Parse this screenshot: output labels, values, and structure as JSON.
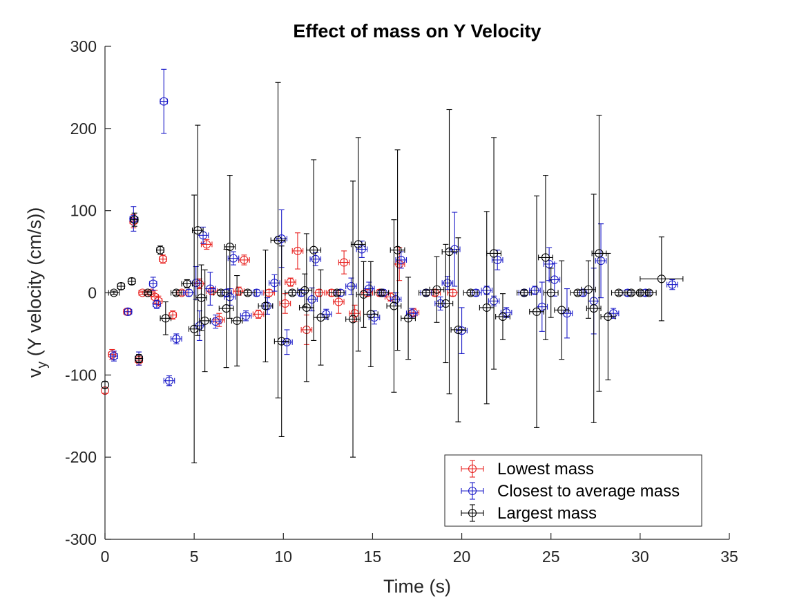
{
  "chart_data": {
    "type": "scatter",
    "title": "Effect of mass on  Y Velocity",
    "xlabel": "Time (s)",
    "ylabel_main": "v",
    "ylabel_sub": "y",
    "ylabel_rest": " (Y velocity (cm/s))",
    "xlim": [
      0,
      35
    ],
    "ylim": [
      -300,
      300
    ],
    "xticks": [
      0,
      5,
      10,
      15,
      20,
      25,
      30,
      35
    ],
    "yticks": [
      300,
      200,
      100,
      0,
      -100,
      -200,
      -300
    ],
    "grid": false,
    "legend_position": "bottom-right",
    "series": [
      {
        "name": "Lowest mass",
        "color": "#e8211f",
        "points": [
          [
            0.0,
            -119,
            0,
            3
          ],
          [
            0.4,
            -75,
            0.2,
            6
          ],
          [
            1.25,
            -23,
            0.2,
            4
          ],
          [
            1.6,
            87,
            0.2,
            8
          ],
          [
            1.9,
            -82,
            0.2,
            6
          ],
          [
            2.1,
            0,
            0.2,
            2
          ],
          [
            2.4,
            0,
            0.2,
            2
          ],
          [
            2.6,
            0,
            0.2,
            2
          ],
          [
            2.8,
            -5,
            0.2,
            8
          ],
          [
            3.0,
            -10,
            0.2,
            6
          ],
          [
            3.25,
            41,
            0.2,
            5
          ],
          [
            3.8,
            -27,
            0.2,
            5
          ],
          [
            4.3,
            0,
            0.3,
            3
          ],
          [
            5.3,
            11,
            0.3,
            6
          ],
          [
            5.7,
            59,
            0.3,
            6
          ],
          [
            6.0,
            2,
            0.3,
            4
          ],
          [
            6.4,
            -33,
            0.3,
            8
          ],
          [
            7.5,
            2,
            0.3,
            5
          ],
          [
            7.8,
            40,
            0.3,
            6
          ],
          [
            8.6,
            -26,
            0.3,
            5
          ],
          [
            9.2,
            0,
            0.3,
            4
          ],
          [
            10.1,
            -13,
            0.3,
            12
          ],
          [
            10.4,
            13,
            0.3,
            5
          ],
          [
            10.8,
            51,
            0.3,
            22
          ],
          [
            11.3,
            -45,
            0.3,
            18
          ],
          [
            12.0,
            0,
            0.3,
            4
          ],
          [
            12.7,
            0,
            0.3,
            4
          ],
          [
            13.1,
            -11,
            0.3,
            14
          ],
          [
            13.4,
            37,
            0.3,
            14
          ],
          [
            14.0,
            -25,
            0.3,
            10
          ],
          [
            14.7,
            0,
            0.3,
            4
          ],
          [
            15.4,
            0,
            0.3,
            4
          ],
          [
            16.0,
            -5,
            0.3,
            5
          ],
          [
            16.5,
            35,
            0.3,
            20
          ],
          [
            17.3,
            -24,
            0.3,
            5
          ],
          [
            18.5,
            0,
            0.3,
            4
          ],
          [
            19.5,
            0,
            0.3,
            4
          ]
        ]
      },
      {
        "name": "Closest to average mass",
        "color": "#1a1ac8",
        "points": [
          [
            0.5,
            -77,
            0.2,
            6
          ],
          [
            1.3,
            -23,
            0.2,
            4
          ],
          [
            1.6,
            90,
            0.2,
            15
          ],
          [
            1.9,
            -80,
            0.2,
            8
          ],
          [
            2.7,
            11,
            0.2,
            8
          ],
          [
            2.9,
            -14,
            0.2,
            5
          ],
          [
            3.3,
            233,
            0.2,
            39
          ],
          [
            3.6,
            -107,
            0.3,
            6
          ],
          [
            4.0,
            -56,
            0.3,
            6
          ],
          [
            4.7,
            0,
            0.3,
            4
          ],
          [
            5.1,
            12,
            0.3,
            20
          ],
          [
            5.3,
            -40,
            0.3,
            18
          ],
          [
            5.5,
            70,
            0.3,
            10
          ],
          [
            5.9,
            5,
            0.3,
            20
          ],
          [
            6.2,
            -35,
            0.3,
            8
          ],
          [
            6.8,
            0,
            0.3,
            4
          ],
          [
            7.0,
            -5,
            0.3,
            10
          ],
          [
            7.2,
            42,
            0.3,
            8
          ],
          [
            7.9,
            -28,
            0.3,
            6
          ],
          [
            8.5,
            0,
            0.3,
            4
          ],
          [
            9.1,
            -16,
            0.3,
            10
          ],
          [
            9.5,
            12,
            0.3,
            10
          ],
          [
            9.9,
            66,
            0.3,
            35
          ],
          [
            10.2,
            -60,
            0.3,
            15
          ],
          [
            11.0,
            0,
            0.3,
            4
          ],
          [
            11.6,
            -8,
            0.3,
            14
          ],
          [
            11.8,
            41,
            0.3,
            8
          ],
          [
            12.4,
            -26,
            0.3,
            6
          ],
          [
            13.2,
            0,
            0.3,
            4
          ],
          [
            13.8,
            8,
            0.3,
            10
          ],
          [
            14.4,
            53,
            0.3,
            10
          ],
          [
            14.8,
            5,
            0.3,
            8
          ],
          [
            15.1,
            -30,
            0.3,
            8
          ],
          [
            15.6,
            0,
            0.3,
            4
          ],
          [
            16.3,
            -8,
            0.3,
            8
          ],
          [
            16.6,
            40,
            0.3,
            10
          ],
          [
            17.2,
            -25,
            0.3,
            6
          ],
          [
            18.0,
            0,
            0.3,
            4
          ],
          [
            18.8,
            -13,
            0.3,
            8
          ],
          [
            19.2,
            12,
            0.3,
            8
          ],
          [
            19.6,
            53,
            0.3,
            45
          ],
          [
            20.0,
            -46,
            0.3,
            28
          ],
          [
            20.8,
            0,
            0.3,
            4
          ],
          [
            21.4,
            3,
            0.3,
            5
          ],
          [
            21.8,
            -10,
            0.3,
            6
          ],
          [
            22.0,
            40,
            0.3,
            12
          ],
          [
            22.5,
            -24,
            0.3,
            6
          ],
          [
            23.5,
            0,
            0.3,
            4
          ],
          [
            24.1,
            3,
            0.3,
            5
          ],
          [
            24.5,
            -17,
            0.3,
            30
          ],
          [
            24.9,
            35,
            0.3,
            20
          ],
          [
            25.2,
            16,
            0.3,
            20
          ],
          [
            25.9,
            -25,
            0.3,
            30
          ],
          [
            26.8,
            0,
            0.3,
            4
          ],
          [
            27.4,
            -10,
            0.3,
            40
          ],
          [
            27.8,
            39,
            0.3,
            45
          ],
          [
            28.5,
            -25,
            0.3,
            6
          ],
          [
            29.3,
            0,
            0.3,
            4
          ],
          [
            30.3,
            0,
            0.3,
            4
          ],
          [
            31.8,
            10,
            0.3,
            6
          ]
        ]
      },
      {
        "name": "Largest mass",
        "color": "#000000",
        "points": [
          [
            0.0,
            -112,
            0,
            4
          ],
          [
            0.5,
            0,
            0.3,
            2
          ],
          [
            0.9,
            8,
            0.2,
            4
          ],
          [
            1.5,
            14,
            0.2,
            4
          ],
          [
            1.65,
            89,
            0.2,
            8
          ],
          [
            1.9,
            -80,
            0.2,
            5
          ],
          [
            2.4,
            0,
            0.2,
            2
          ],
          [
            3.1,
            52,
            0.2,
            5
          ],
          [
            3.4,
            -31,
            0.3,
            20
          ],
          [
            4.0,
            0,
            0.3,
            3
          ],
          [
            4.6,
            11,
            0.3,
            5
          ],
          [
            5.0,
            -44,
            0.3,
            163
          ],
          [
            5.2,
            76,
            0.3,
            128
          ],
          [
            5.4,
            -6,
            0.3,
            40
          ],
          [
            5.6,
            -34,
            0.3,
            62
          ],
          [
            6.5,
            0,
            0.4,
            3
          ],
          [
            6.8,
            -19,
            0.4,
            72
          ],
          [
            7.0,
            56,
            0.3,
            87
          ],
          [
            7.4,
            -34,
            0.3,
            55
          ],
          [
            8.0,
            0,
            0.4,
            3
          ],
          [
            9.0,
            -16,
            0.4,
            68
          ],
          [
            9.7,
            64,
            0.4,
            192
          ],
          [
            9.9,
            -59,
            0.4,
            116
          ],
          [
            10.5,
            0,
            0.4,
            3
          ],
          [
            11.2,
            3,
            0.4,
            20
          ],
          [
            11.3,
            -18,
            0.4,
            90
          ],
          [
            11.7,
            52,
            0.4,
            110
          ],
          [
            12.1,
            -30,
            0.4,
            58
          ],
          [
            13.0,
            0,
            0.4,
            3
          ],
          [
            13.9,
            -32,
            0.4,
            168
          ],
          [
            14.2,
            59,
            0.4,
            130
          ],
          [
            14.5,
            -2,
            0.4,
            40
          ],
          [
            14.9,
            -26,
            0.4,
            64
          ],
          [
            15.5,
            0,
            0.4,
            3
          ],
          [
            16.2,
            -16,
            0.4,
            105
          ],
          [
            16.4,
            52,
            0.4,
            122
          ],
          [
            17.0,
            -31,
            0.4,
            50
          ],
          [
            18.0,
            0,
            0.4,
            3
          ],
          [
            18.6,
            4,
            0.4,
            40
          ],
          [
            19.1,
            -13,
            0.4,
            72
          ],
          [
            19.3,
            50,
            0.4,
            173
          ],
          [
            19.8,
            -45,
            0.4,
            112
          ],
          [
            20.5,
            0,
            0.4,
            3
          ],
          [
            21.4,
            -18,
            0.4,
            117
          ],
          [
            21.8,
            48,
            0.4,
            141
          ],
          [
            22.3,
            -29,
            0.4,
            28
          ],
          [
            23.5,
            0,
            0.4,
            3
          ],
          [
            24.2,
            -23,
            0.4,
            141
          ],
          [
            24.7,
            43,
            0.4,
            100
          ],
          [
            25.0,
            0,
            0.4,
            30
          ],
          [
            25.6,
            -21,
            0.4,
            60
          ],
          [
            26.5,
            0,
            0.4,
            3
          ],
          [
            27.1,
            4,
            0.4,
            35
          ],
          [
            27.4,
            -19,
            0.4,
            139
          ],
          [
            27.7,
            48,
            0.4,
            168
          ],
          [
            28.2,
            -29,
            0.4,
            77
          ],
          [
            28.8,
            0,
            0.4,
            3
          ],
          [
            29.5,
            0,
            0.4,
            3
          ],
          [
            30.0,
            0,
            0.4,
            3
          ],
          [
            30.5,
            0,
            0.4,
            3
          ],
          [
            31.2,
            17,
            1.2,
            51
          ]
        ]
      }
    ]
  }
}
